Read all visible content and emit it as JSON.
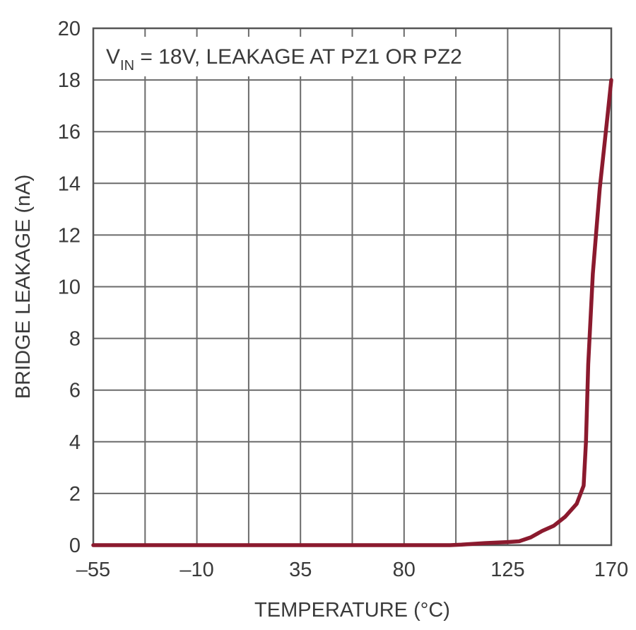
{
  "chart_data": {
    "type": "line",
    "annotation": {
      "prefix": "V",
      "subscript": "IN",
      "suffix": " = 18V, LEAKAGE AT PZ1 OR PZ2"
    },
    "xlabel": "TEMPERATURE (°C)",
    "ylabel": "BRIDGE LEAKAGE (nA)",
    "xlim": [
      -55,
      170
    ],
    "ylim": [
      0,
      20
    ],
    "x_ticks": [
      -55,
      -32.5,
      -10,
      12.5,
      35,
      57.5,
      80,
      102.5,
      125,
      147.5,
      170
    ],
    "x_tick_labels": [
      "–55",
      "",
      "–10",
      "",
      "35",
      "",
      "80",
      "",
      "125",
      "",
      "170"
    ],
    "y_ticks": [
      0,
      2,
      4,
      6,
      8,
      10,
      12,
      14,
      16,
      18,
      20
    ],
    "y_tick_labels": [
      "0",
      "2",
      "4",
      "6",
      "8",
      "10",
      "12",
      "14",
      "16",
      "18",
      "20"
    ],
    "grid": true,
    "series": [
      {
        "color": "#8b1a2e",
        "x": [
          -55,
          0,
          50,
          100,
          105,
          115,
          125,
          130,
          135,
          140,
          145,
          150,
          155,
          158,
          159,
          160,
          162,
          165,
          168,
          170
        ],
        "y": [
          0,
          0,
          0,
          0,
          0.02,
          0.08,
          0.12,
          0.15,
          0.3,
          0.55,
          0.75,
          1.1,
          1.6,
          2.3,
          4.0,
          7.0,
          10.5,
          13.8,
          16.3,
          18.0
        ]
      }
    ]
  }
}
